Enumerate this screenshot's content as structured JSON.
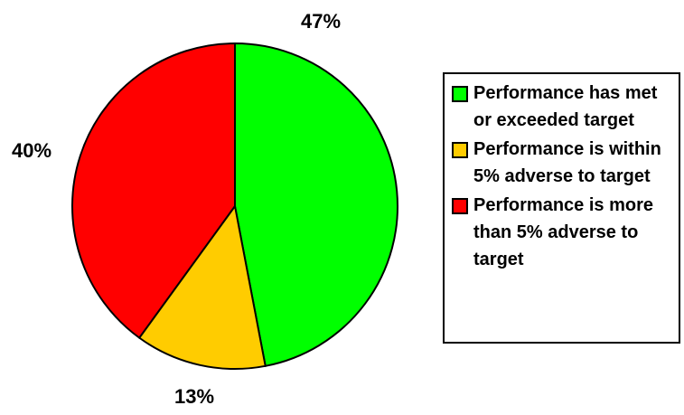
{
  "chart_data": {
    "type": "pie",
    "categories": [
      "Performance has met or exceeded target",
      "Performance is within 5% adverse to target",
      "Performance is more than 5% adverse to target"
    ],
    "values": [
      47,
      13,
      40
    ],
    "value_labels": [
      "47%",
      "13%",
      "40%"
    ],
    "colors": [
      "#00ff00",
      "#ffcc00",
      "#ff0000"
    ],
    "legend": "right"
  }
}
